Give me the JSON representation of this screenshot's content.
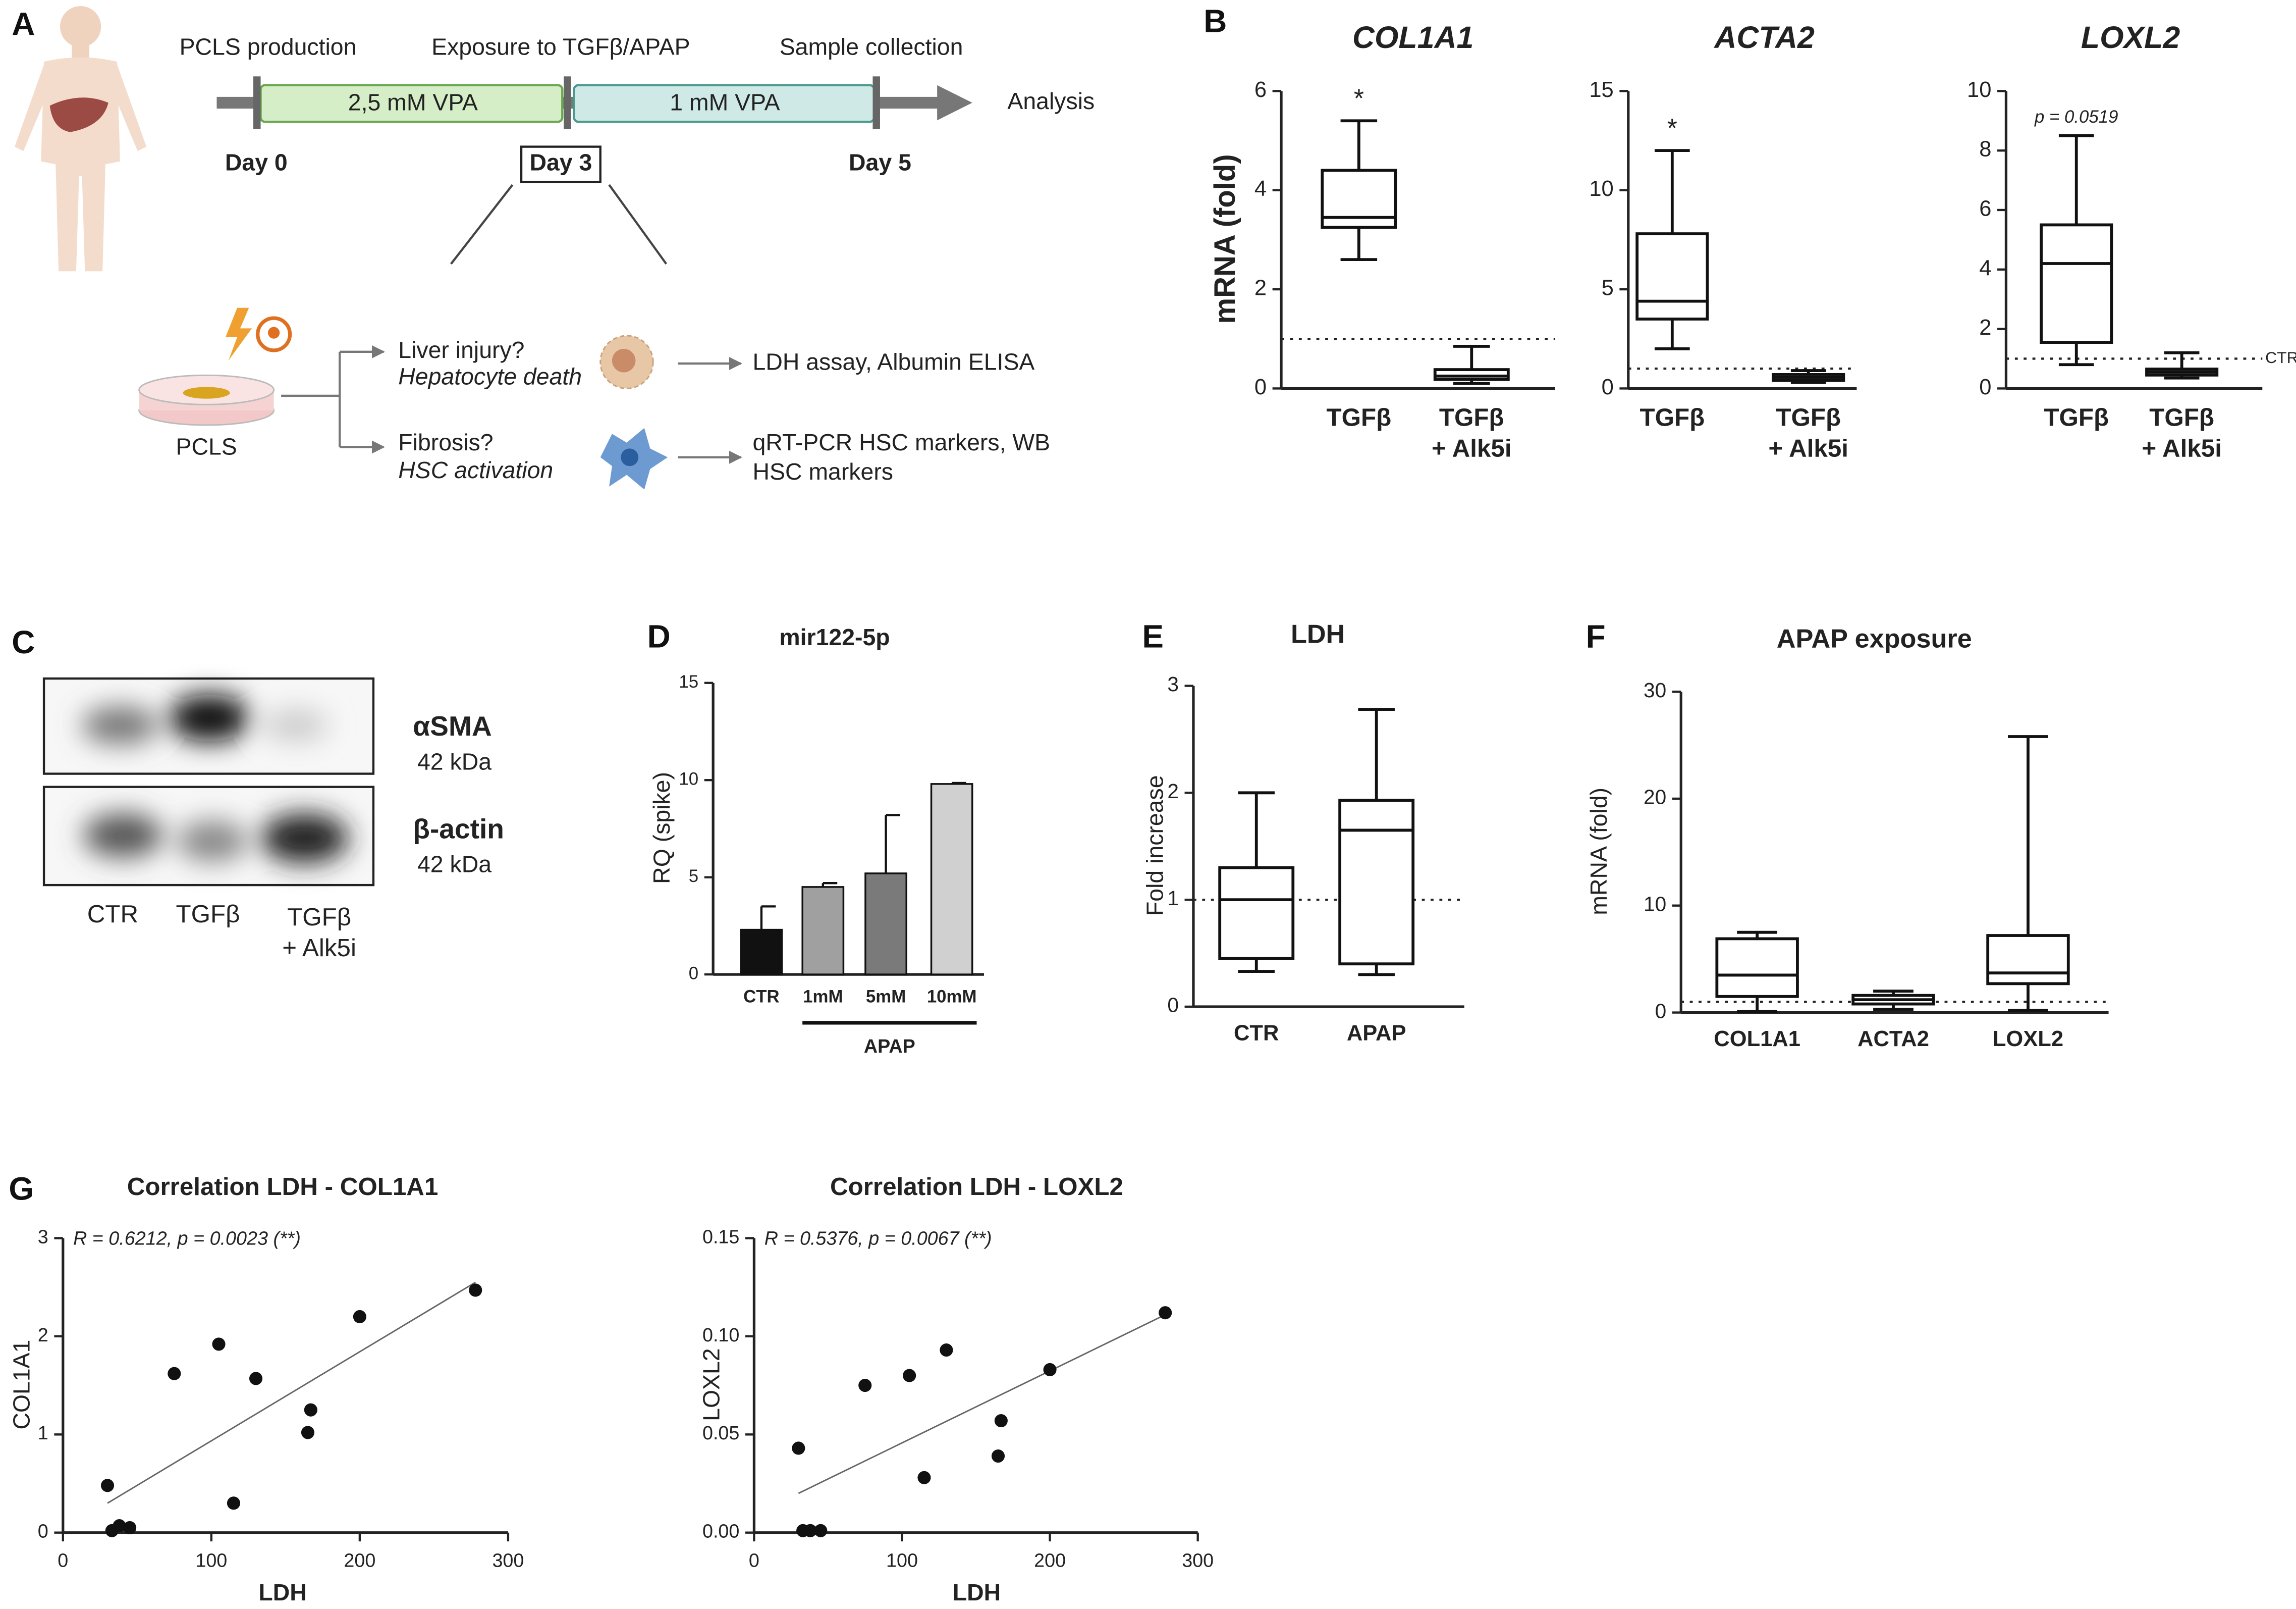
{
  "panel_a": {
    "panel": "A",
    "stage_labels": [
      "PCLS production",
      "Exposure to TGFβ/APAP",
      "Sample collection"
    ],
    "phases": [
      "2,5 mM VPA",
      "1 mM VPA"
    ],
    "endpoint": "Analysis",
    "days": [
      "Day 0",
      "Day 3",
      "Day 5"
    ],
    "sample": "PCLS",
    "branches": [
      {
        "question": "Liver injury?",
        "process": "Hepatocyte death",
        "readout": [
          "LDH assay, Albumin ELISA"
        ]
      },
      {
        "question": "Fibrosis?",
        "process": "HSC activation",
        "readout": [
          "qRT-PCR HSC markers, WB",
          "HSC markers"
        ]
      }
    ]
  },
  "panel_c": {
    "panel": "C",
    "bands": [
      {
        "name": "αSMA",
        "size": "42 kDa"
      },
      {
        "name": "β-actin",
        "size": "42 kDa"
      }
    ],
    "lanes": [
      [
        "CTR"
      ],
      [
        "TGFβ"
      ],
      [
        "TGFβ",
        "+ Alk5i"
      ]
    ]
  },
  "chart_data": [
    {
      "type": "box",
      "panel": "B",
      "title": "COL1A1",
      "ylabel": "mRNA (fold)",
      "categories": [
        [
          "TGFβ"
        ],
        [
          "TGFβ",
          "+ Alk5i"
        ]
      ],
      "boxes": [
        {
          "min": 2.6,
          "q1": 3.25,
          "median": 3.45,
          "q3": 4.4,
          "max": 5.4
        },
        {
          "min": 0.1,
          "q1": 0.18,
          "median": 0.25,
          "q3": 0.38,
          "max": 0.85
        }
      ],
      "annotations": [
        "*",
        null
      ],
      "reference_line": 1,
      "ylim": [
        0,
        6
      ],
      "yticks": [
        0,
        2,
        4,
        6
      ]
    },
    {
      "type": "box",
      "title": "ACTA2",
      "categories": [
        [
          "TGFβ"
        ],
        [
          "TGFβ",
          "+ Alk5i"
        ]
      ],
      "boxes": [
        {
          "min": 2,
          "q1": 3.5,
          "median": 4.4,
          "q3": 7.8,
          "max": 12
        },
        {
          "min": 0.3,
          "q1": 0.4,
          "median": 0.55,
          "q3": 0.7,
          "max": 0.9
        }
      ],
      "annotations": [
        "*",
        null
      ],
      "reference_line": 1,
      "ylim": [
        0,
        15
      ],
      "yticks": [
        0,
        5,
        10,
        15
      ]
    },
    {
      "type": "box",
      "title": "LOXL2",
      "categories": [
        [
          "TGFβ"
        ],
        [
          "TGFβ",
          "+ Alk5i"
        ]
      ],
      "boxes": [
        {
          "min": 0.8,
          "q1": 1.55,
          "median": 4.2,
          "q3": 5.5,
          "max": 8.5
        },
        {
          "min": 0.35,
          "q1": 0.45,
          "median": 0.55,
          "q3": 0.65,
          "max": 1.2
        }
      ],
      "annotations": [
        "p = 0.0519",
        null
      ],
      "reference_line": 1,
      "reference_label": "CTR",
      "ylim": [
        0,
        10
      ],
      "yticks": [
        0,
        2,
        4,
        6,
        8,
        10
      ]
    },
    {
      "type": "bar",
      "panel": "D",
      "title": "mir122-5p",
      "ylabel": "RQ (spike)",
      "categories": [
        [
          "CTR"
        ],
        [
          "1mM"
        ],
        [
          "5mM"
        ],
        [
          "10mM"
        ]
      ],
      "values": [
        2.3,
        4.5,
        5.2,
        9.8
      ],
      "errors": [
        1.2,
        0.2,
        3.0,
        0.05
      ],
      "colors": [
        "#111111",
        "#a0a0a0",
        "#7a7a7a",
        "#d0d0d0"
      ],
      "group_label": "APAP",
      "ylim": [
        0,
        15
      ],
      "yticks": [
        0,
        5,
        10,
        15
      ]
    },
    {
      "type": "box",
      "panel": "E",
      "title": "LDH",
      "ylabel": "Fold increase",
      "categories": [
        [
          "CTR"
        ],
        [
          "APAP"
        ]
      ],
      "boxes": [
        {
          "min": 0.33,
          "q1": 0.45,
          "median": 1.0,
          "q3": 1.3,
          "max": 2.0
        },
        {
          "min": 0.3,
          "q1": 0.4,
          "median": 1.65,
          "q3": 1.93,
          "max": 2.78
        }
      ],
      "reference_line": 1,
      "ylim": [
        0,
        3
      ],
      "yticks": [
        0,
        1,
        2,
        3
      ]
    },
    {
      "type": "box",
      "panel": "F",
      "title": "APAP exposure",
      "ylabel": "mRNA (fold)",
      "categories": [
        [
          "COL1A1"
        ],
        [
          "ACTA2"
        ],
        [
          "LOXL2"
        ]
      ],
      "boxes": [
        {
          "min": 0.1,
          "q1": 1.5,
          "median": 3.5,
          "q3": 6.9,
          "max": 7.5
        },
        {
          "min": 0.3,
          "q1": 0.8,
          "median": 1.2,
          "q3": 1.6,
          "max": 2.0
        },
        {
          "min": 0.2,
          "q1": 2.7,
          "median": 3.7,
          "q3": 7.2,
          "max": 25.8
        }
      ],
      "reference_line": 1,
      "ylim": [
        0,
        30
      ],
      "yticks": [
        0,
        10,
        20,
        30
      ]
    },
    {
      "type": "scatter",
      "panel": "G",
      "title": "Correlation LDH - COL1A1",
      "xlabel": "LDH",
      "ylabel": "COL1A1",
      "annotation": "R = 0.6212, p = 0.0023 (**)",
      "x": [
        30,
        33,
        38,
        45,
        75,
        105,
        115,
        130,
        165,
        167,
        200,
        278
      ],
      "y": [
        0.48,
        0.02,
        0.07,
        0.05,
        1.62,
        1.92,
        0.3,
        1.57,
        1.02,
        1.25,
        2.2,
        2.47
      ],
      "fit": {
        "x": [
          30,
          278
        ],
        "y": [
          0.3,
          2.55
        ]
      },
      "xlim": [
        0,
        300
      ],
      "xticks": [
        0,
        100,
        200,
        300
      ],
      "ylim": [
        0,
        3
      ],
      "yticks": [
        0,
        1,
        2,
        3
      ]
    },
    {
      "type": "scatter",
      "title": "Correlation LDH - LOXL2",
      "xlabel": "LDH",
      "ylabel": "LOXL2",
      "annotation": "R = 0.5376, p = 0.0067 (**)",
      "x": [
        30,
        33,
        38,
        45,
        75,
        105,
        115,
        130,
        165,
        167,
        200,
        278
      ],
      "y": [
        0.043,
        0.001,
        0.001,
        0.001,
        0.075,
        0.08,
        0.028,
        0.093,
        0.039,
        0.057,
        0.083,
        0.112
      ],
      "fit": {
        "x": [
          30,
          278
        ],
        "y": [
          0.02,
          0.111
        ]
      },
      "xlim": [
        0,
        300
      ],
      "xticks": [
        0,
        100,
        200,
        300
      ],
      "ylim": [
        0,
        0.15
      ],
      "yticks": [
        {
          "value": 0,
          "label": "0.00"
        },
        0.05,
        {
          "value": 0.1,
          "label": "0.10"
        },
        0.15
      ]
    }
  ]
}
